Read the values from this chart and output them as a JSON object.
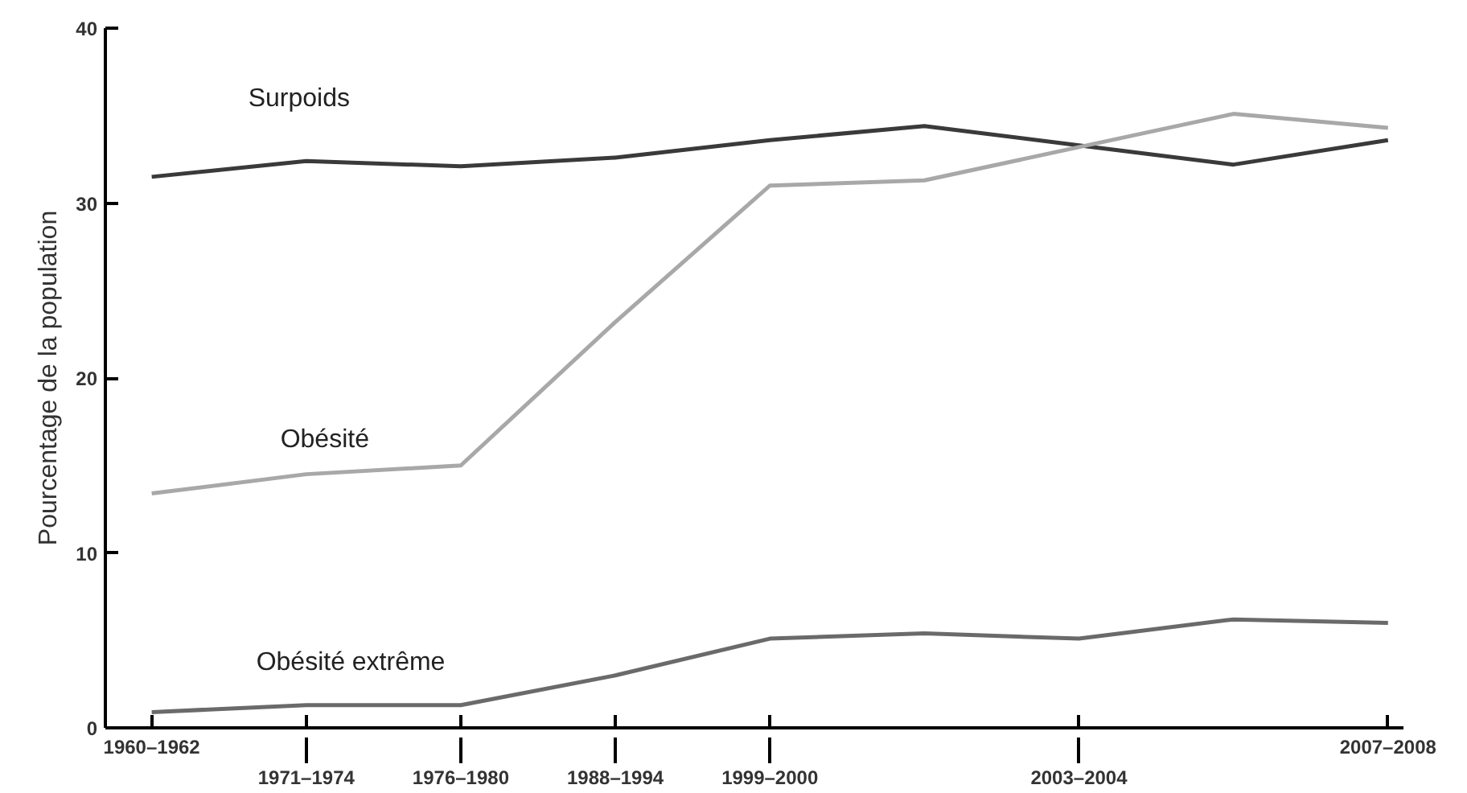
{
  "chart_data": {
    "type": "line",
    "ylabel": "Pourcentage de la population",
    "categories": [
      "1960–1962",
      "1971–1974",
      "1976–1980",
      "1988–1994",
      "1999–2000",
      null,
      "2003–2004",
      null,
      "2007–2008"
    ],
    "ylim": [
      0,
      40
    ],
    "yticks": [
      0,
      10,
      20,
      30,
      40
    ],
    "grid": false,
    "marker": "none",
    "line_style": "solid",
    "series": [
      {
        "name": "Surpoids",
        "color": "#3a3a3a",
        "values": [
          31.5,
          32.4,
          32.1,
          32.6,
          33.6,
          34.4,
          33.3,
          32.2,
          33.6
        ]
      },
      {
        "name": "Obésité",
        "color": "#a8a8a8",
        "values": [
          13.4,
          14.5,
          15.0,
          23.2,
          31.0,
          31.3,
          33.2,
          35.1,
          34.3
        ]
      },
      {
        "name": "Obésité extrême",
        "color": "#6a6a6a",
        "values": [
          0.9,
          1.3,
          1.3,
          3.0,
          5.1,
          5.4,
          5.1,
          6.2,
          6.0
        ]
      }
    ]
  }
}
